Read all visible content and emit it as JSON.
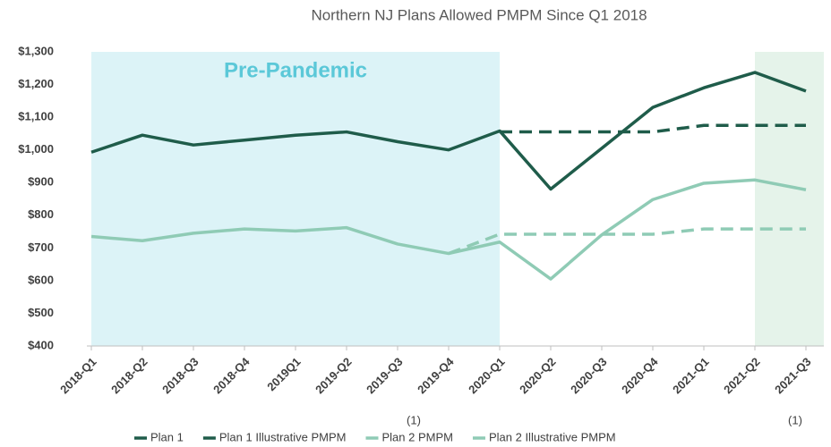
{
  "chart_data": {
    "type": "line",
    "title": "Northern NJ Plans Allowed PMPM Since Q1 2018",
    "categories": [
      "2018-Q1",
      "2018-Q2",
      "2018-Q3",
      "2018-Q4",
      "2019Q1",
      "2019-Q2",
      "2019-Q3",
      "2019-Q4",
      "2020-Q1",
      "2020-Q2",
      "2020-Q3",
      "2020-Q4",
      "2021-Q1",
      "2021-Q2",
      "2021-Q3"
    ],
    "series": [
      {
        "name": "Plan 1",
        "color": "#1f5c4a",
        "dashed": false,
        "values": [
          993,
          1045,
          1015,
          1030,
          1045,
          1055,
          1025,
          1000,
          1058,
          880,
          1005,
          1130,
          1190,
          1237,
          1180
        ]
      },
      {
        "name": "Plan 1 Illustrative PMPM",
        "color": "#1f5c4a",
        "dashed": true,
        "values": [
          null,
          null,
          null,
          null,
          null,
          null,
          null,
          null,
          1055,
          1055,
          1055,
          1055,
          1075,
          1075,
          1075
        ]
      },
      {
        "name": "Plan 2 PMPM",
        "color": "#8fcbb5",
        "dashed": false,
        "values": [
          735,
          722,
          745,
          758,
          752,
          762,
          712,
          683,
          718,
          605,
          740,
          848,
          898,
          908,
          878
        ]
      },
      {
        "name": "Plan 2 Illustrative PMPM",
        "color": "#8fcbb5",
        "dashed": true,
        "values": [
          null,
          null,
          null,
          null,
          null,
          null,
          null,
          683,
          742,
          742,
          742,
          742,
          758,
          758,
          758
        ]
      }
    ],
    "ylim": [
      400,
      1300
    ],
    "yticks": [
      {
        "value": 400,
        "label": "$400"
      },
      {
        "value": 500,
        "label": "$500"
      },
      {
        "value": 600,
        "label": "$600"
      },
      {
        "value": 700,
        "label": "$700"
      },
      {
        "value": 800,
        "label": "$800"
      },
      {
        "value": 900,
        "label": "$900"
      },
      {
        "value": 1000,
        "label": "$1,000"
      },
      {
        "value": 1100,
        "label": "$1,100"
      },
      {
        "value": 1200,
        "label": "$1,200"
      },
      {
        "value": 1300,
        "label": "$1,300"
      }
    ],
    "shaded_regions": [
      {
        "label": "Pre-Pandemic",
        "from": 0,
        "to": 8,
        "color": "#dcf3f7"
      },
      {
        "from": 13,
        "to": 14,
        "color": "#e5f3ea"
      }
    ],
    "annotations": [
      "(1)",
      "(1)"
    ]
  }
}
